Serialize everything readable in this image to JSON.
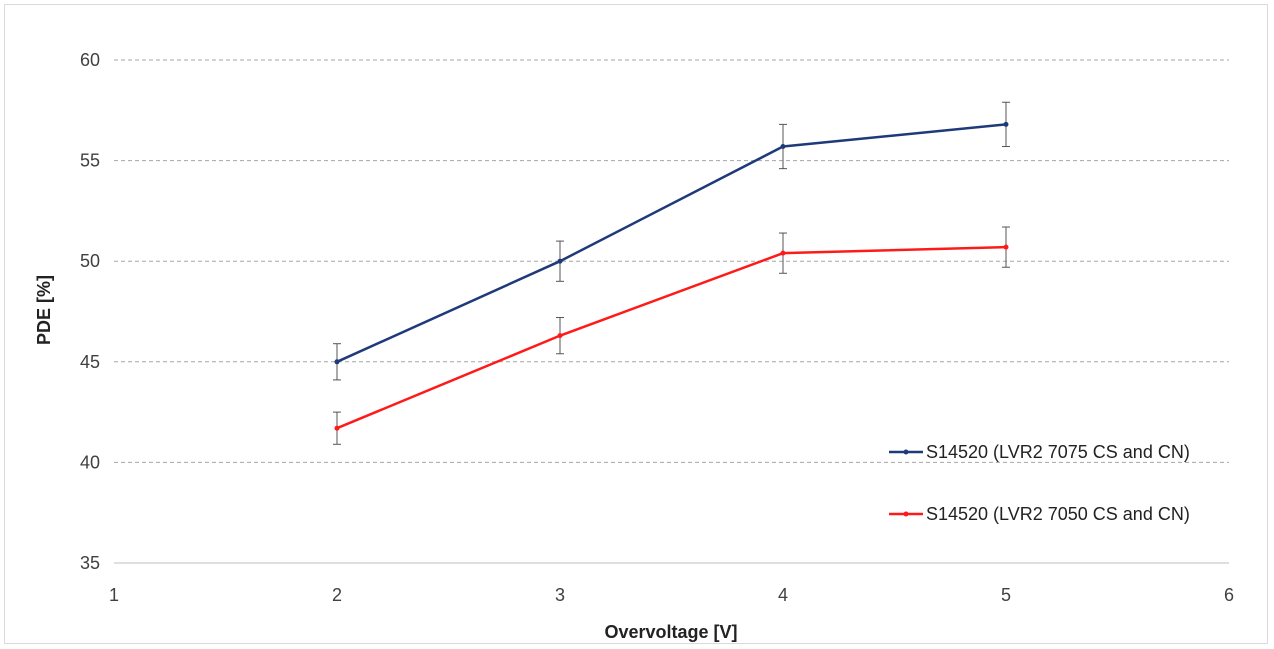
{
  "chart_data": {
    "type": "line",
    "title": "",
    "xlabel": "Overvoltage [V]",
    "ylabel": "PDE [%]",
    "xlim": [
      1,
      6
    ],
    "ylim": [
      35,
      60
    ],
    "x_ticks": [
      "1",
      "2",
      "3",
      "4",
      "5",
      "6"
    ],
    "y_ticks": [
      "35",
      "40",
      "45",
      "50",
      "55",
      "60"
    ],
    "grid": "horizontal dashed",
    "legend_position": "right",
    "series": [
      {
        "name": "S14520 (LVR2 7075 CS and CN)",
        "color": "#1f3a7a",
        "x": [
          2,
          3,
          4,
          5
        ],
        "y": [
          45.0,
          50.0,
          55.7,
          56.8
        ],
        "error": [
          0.9,
          1.0,
          1.1,
          1.1
        ]
      },
      {
        "name": "S14520 (LVR2 7050 CS and CN)",
        "color": "#ff1a1a",
        "x": [
          2,
          3,
          4,
          5
        ],
        "y": [
          41.7,
          46.3,
          50.4,
          50.7
        ],
        "error": [
          0.8,
          0.9,
          1.0,
          1.0
        ]
      }
    ]
  }
}
